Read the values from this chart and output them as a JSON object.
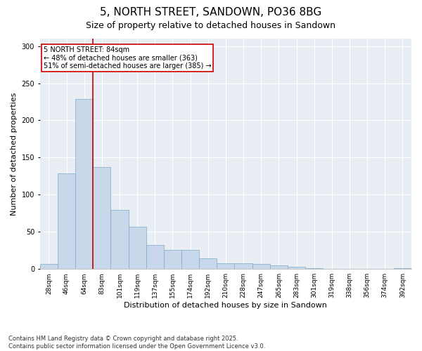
{
  "title": "5, NORTH STREET, SANDOWN, PO36 8BG",
  "subtitle": "Size of property relative to detached houses in Sandown",
  "xlabel": "Distribution of detached houses by size in Sandown",
  "ylabel": "Number of detached properties",
  "categories": [
    "28sqm",
    "46sqm",
    "64sqm",
    "83sqm",
    "101sqm",
    "119sqm",
    "137sqm",
    "155sqm",
    "174sqm",
    "192sqm",
    "210sqm",
    "228sqm",
    "247sqm",
    "265sqm",
    "283sqm",
    "301sqm",
    "319sqm",
    "338sqm",
    "356sqm",
    "374sqm",
    "392sqm"
  ],
  "values": [
    7,
    129,
    229,
    137,
    80,
    57,
    32,
    26,
    26,
    14,
    8,
    8,
    7,
    5,
    3,
    1,
    0,
    0,
    0,
    0,
    1
  ],
  "bar_color": "#c8d8ea",
  "bar_edge_color": "#7aaac8",
  "vline_x_index": 3,
  "vline_color": "#cc0000",
  "annotation_title": "5 NORTH STREET: 84sqm",
  "annotation_line1": "← 48% of detached houses are smaller (363)",
  "annotation_line2": "51% of semi-detached houses are larger (385) →",
  "annotation_box_color": "#cc0000",
  "ylim": [
    0,
    310
  ],
  "yticks": [
    0,
    50,
    100,
    150,
    200,
    250,
    300
  ],
  "footnote1": "Contains HM Land Registry data © Crown copyright and database right 2025.",
  "footnote2": "Contains public sector information licensed under the Open Government Licence v3.0.",
  "plot_bg_color": "#e8eef4",
  "fig_bg_color": "#ffffff",
  "grid_color": "#ffffff",
  "title_fontsize": 11,
  "subtitle_fontsize": 9,
  "axis_label_fontsize": 8,
  "tick_fontsize": 6.5,
  "annotation_fontsize": 7,
  "footnote_fontsize": 6
}
